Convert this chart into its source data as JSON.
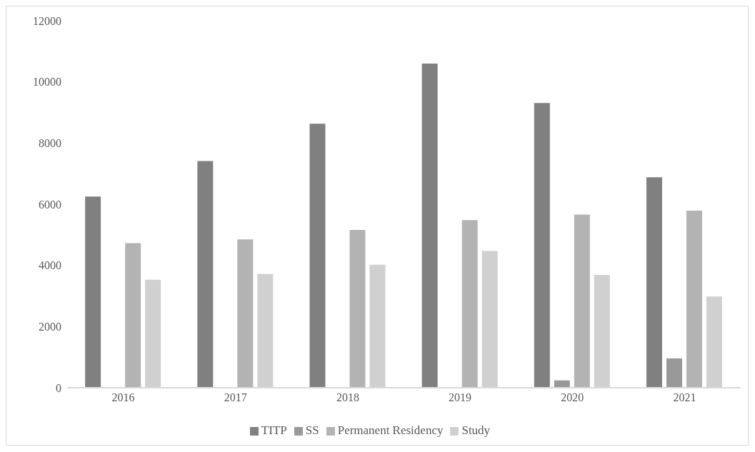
{
  "chart_data": {
    "type": "bar",
    "categories": [
      "2016",
      "2017",
      "2018",
      "2019",
      "2020",
      "2021"
    ],
    "series": [
      {
        "name": "TITP",
        "color": "#808080",
        "values": [
          6250,
          7410,
          8630,
          10600,
          9310,
          6880
        ]
      },
      {
        "name": "SS",
        "color": "#999999",
        "values": [
          0,
          0,
          0,
          0,
          240,
          960
        ]
      },
      {
        "name": "Permanent Residency",
        "color": "#b3b3b3",
        "values": [
          4730,
          4850,
          5160,
          5480,
          5660,
          5790
        ]
      },
      {
        "name": "Study",
        "color": "#d0d0d0",
        "values": [
          3530,
          3720,
          4020,
          4470,
          3690,
          2980
        ]
      }
    ],
    "ylim": [
      0,
      12000
    ],
    "yticks": [
      0,
      2000,
      4000,
      6000,
      8000,
      10000,
      12000
    ],
    "grid": false,
    "legend": "bottom"
  }
}
